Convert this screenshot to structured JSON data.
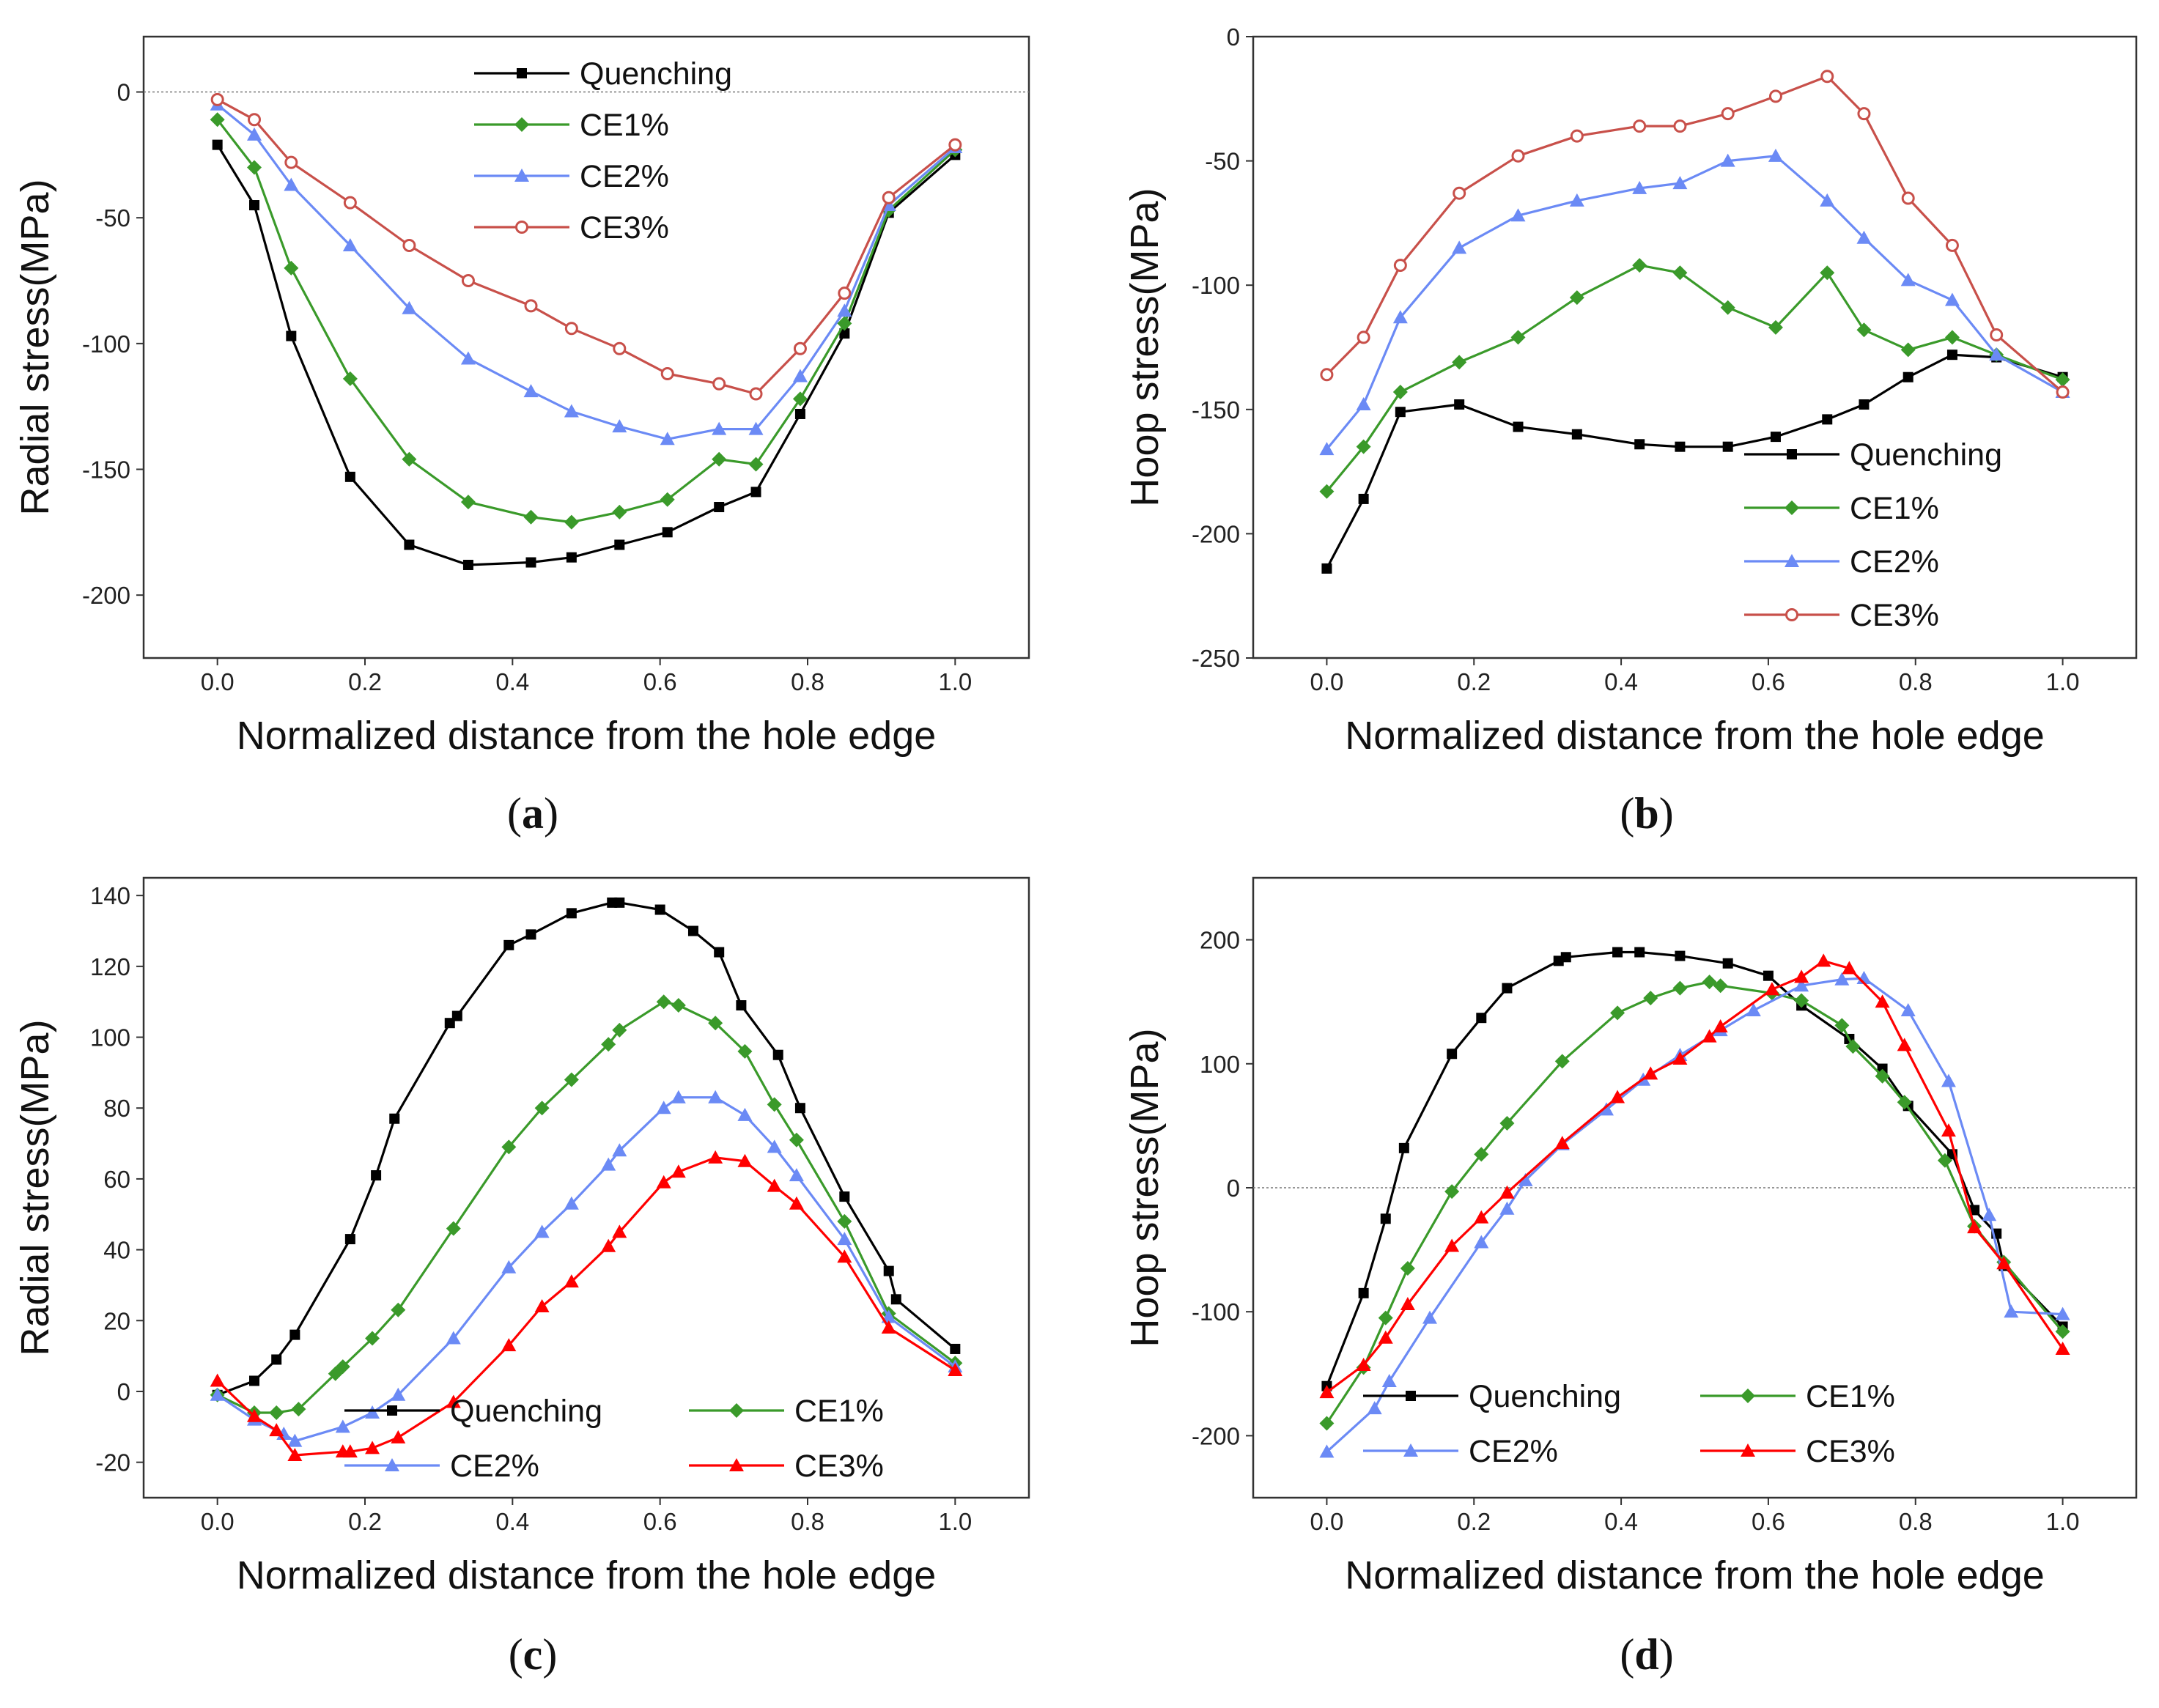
{
  "colors": {
    "Quenching": "#000000",
    "CE1%": "#3a9a2a",
    "CE2%": "#6b8af5",
    "CE3%": "#c8504a",
    "CE3%_red": "#ff0000"
  },
  "chart_data": [
    {
      "id": "a",
      "type": "line",
      "panel_label": "a",
      "xlabel": "Normalized distance from the hole edge",
      "ylabel": "Radial stress(MPa)",
      "xlim": [
        -0.1,
        1.1
      ],
      "ylim": [
        -225,
        22
      ],
      "xticks": [
        0.0,
        0.2,
        0.4,
        0.6,
        0.8,
        1.0
      ],
      "xtick_labels": [
        "0.0",
        "0.2",
        "0.4",
        "0.6",
        "0.8",
        "1.0"
      ],
      "yticks": [
        0,
        -50,
        -100,
        -150,
        -200
      ],
      "ytick_labels": [
        "0",
        "-50",
        "-100",
        "-150",
        "-200"
      ],
      "zero_line": true,
      "legend": {
        "position": "top-center",
        "columns": 1
      },
      "series": [
        {
          "name": "Quenching",
          "marker": "square",
          "color_key": "Quenching",
          "x": [
            0.0,
            0.05,
            0.1,
            0.18,
            0.26,
            0.34,
            0.425,
            0.48,
            0.545,
            0.61,
            0.68,
            0.73,
            0.79,
            0.85,
            0.91,
            1.0
          ],
          "y": [
            -21,
            -45,
            -97,
            -153,
            -180,
            -188,
            -187,
            -185,
            -180,
            -175,
            -165,
            -159,
            -128,
            -96,
            -48,
            -25
          ]
        },
        {
          "name": "CE1%",
          "marker": "diamond",
          "color_key": "CE1%",
          "x": [
            0.0,
            0.05,
            0.1,
            0.18,
            0.26,
            0.34,
            0.425,
            0.48,
            0.545,
            0.61,
            0.68,
            0.73,
            0.79,
            0.85,
            0.91,
            1.0
          ],
          "y": [
            -11,
            -30,
            -70,
            -114,
            -146,
            -163,
            -169,
            -171,
            -167,
            -162,
            -146,
            -148,
            -122,
            -92,
            -47,
            -23
          ]
        },
        {
          "name": "CE2%",
          "marker": "triangle",
          "color_key": "CE2%",
          "x": [
            0.0,
            0.05,
            0.1,
            0.18,
            0.26,
            0.34,
            0.425,
            0.48,
            0.545,
            0.61,
            0.68,
            0.73,
            0.79,
            0.85,
            0.91,
            1.0
          ],
          "y": [
            -5,
            -17,
            -37,
            -61,
            -86,
            -106,
            -119,
            -127,
            -133,
            -138,
            -134,
            -134,
            -113,
            -87,
            -45,
            -22
          ]
        },
        {
          "name": "CE3%",
          "marker": "circle",
          "color_key": "CE3%",
          "x": [
            0.0,
            0.05,
            0.1,
            0.18,
            0.26,
            0.34,
            0.425,
            0.48,
            0.545,
            0.61,
            0.68,
            0.73,
            0.79,
            0.85,
            0.91,
            1.0
          ],
          "y": [
            -3,
            -11,
            -28,
            -44,
            -61,
            -75,
            -85,
            -94,
            -102,
            -112,
            -116,
            -120,
            -102,
            -80,
            -42,
            -21
          ]
        }
      ]
    },
    {
      "id": "b",
      "type": "line",
      "panel_label": "b",
      "xlabel": "Normalized distance from the hole edge",
      "ylabel": "Hoop stress(MPa)",
      "xlim": [
        -0.1,
        1.1
      ],
      "ylim": [
        -250,
        0
      ],
      "xticks": [
        0.0,
        0.2,
        0.4,
        0.6,
        0.8,
        1.0
      ],
      "xtick_labels": [
        "0.0",
        "0.2",
        "0.4",
        "0.6",
        "0.8",
        "1.0"
      ],
      "yticks": [
        0,
        -50,
        -100,
        -150,
        -200,
        -250
      ],
      "ytick_labels": [
        "0",
        "-50",
        "-100",
        "-150",
        "-200",
        "-250"
      ],
      "zero_line": false,
      "legend": {
        "position": "bottom-right",
        "columns": 1
      },
      "series": [
        {
          "name": "Quenching",
          "marker": "square",
          "color_key": "Quenching",
          "x": [
            0.0,
            0.05,
            0.1,
            0.18,
            0.26,
            0.34,
            0.425,
            0.48,
            0.545,
            0.61,
            0.68,
            0.73,
            0.79,
            0.85,
            0.91,
            1.0
          ],
          "y": [
            -214,
            -186,
            -151,
            -148,
            -157,
            -160,
            -164,
            -165,
            -165,
            -161,
            -154,
            -148,
            -137,
            -128,
            -129,
            -137
          ]
        },
        {
          "name": "CE1%",
          "marker": "diamond",
          "color_key": "CE1%",
          "x": [
            0.0,
            0.05,
            0.1,
            0.18,
            0.26,
            0.34,
            0.425,
            0.48,
            0.545,
            0.61,
            0.68,
            0.73,
            0.79,
            0.85,
            0.91,
            1.0
          ],
          "y": [
            -183,
            -165,
            -143,
            -131,
            -121,
            -105,
            -92,
            -95,
            -109,
            -117,
            -95,
            -118,
            -126,
            -121,
            -128,
            -138
          ]
        },
        {
          "name": "CE2%",
          "marker": "triangle",
          "color_key": "CE2%",
          "x": [
            0.0,
            0.05,
            0.1,
            0.18,
            0.26,
            0.34,
            0.425,
            0.48,
            0.545,
            0.61,
            0.68,
            0.73,
            0.79,
            0.85,
            0.91,
            1.0
          ],
          "y": [
            -166,
            -148,
            -113,
            -85,
            -72,
            -66,
            -61,
            -59,
            -50,
            -48,
            -66,
            -81,
            -98,
            -106,
            -128,
            -143
          ]
        },
        {
          "name": "CE3%",
          "marker": "circle",
          "color_key": "CE3%",
          "x": [
            0.0,
            0.05,
            0.1,
            0.18,
            0.26,
            0.34,
            0.425,
            0.48,
            0.545,
            0.61,
            0.68,
            0.73,
            0.79,
            0.85,
            0.91,
            1.0
          ],
          "y": [
            -136,
            -121,
            -92,
            -63,
            -48,
            -40,
            -36,
            -36,
            -31,
            -24,
            -16,
            -31,
            -65,
            -84,
            -120,
            -143
          ]
        }
      ]
    },
    {
      "id": "c",
      "type": "line",
      "panel_label": "c",
      "xlabel": "Normalized distance from the hole edge",
      "ylabel": "Radial stress(MPa)",
      "xlim": [
        -0.1,
        1.1
      ],
      "ylim": [
        -30,
        145
      ],
      "xticks": [
        0.0,
        0.2,
        0.4,
        0.6,
        0.8,
        1.0
      ],
      "xtick_labels": [
        "0.0",
        "0.2",
        "0.4",
        "0.6",
        "0.8",
        "1.0"
      ],
      "yticks": [
        -20,
        0,
        20,
        40,
        60,
        80,
        100,
        120,
        140
      ],
      "ytick_labels": [
        "-20",
        "0",
        "20",
        "40",
        "60",
        "80",
        "100",
        "120",
        "140"
      ],
      "zero_line": false,
      "legend": {
        "position": "bottom-center",
        "columns": 2
      },
      "series": [
        {
          "name": "Quenching",
          "marker": "square",
          "color_key": "Quenching",
          "x": [
            0.0,
            0.05,
            0.08,
            0.105,
            0.18,
            0.215,
            0.24,
            0.315,
            0.325,
            0.395,
            0.425,
            0.48,
            0.535,
            0.545,
            0.6,
            0.645,
            0.68,
            0.71,
            0.76,
            0.79,
            0.85,
            0.91,
            0.92,
            1.0
          ],
          "y": [
            -1,
            3,
            9,
            16,
            43,
            61,
            77,
            104,
            106,
            126,
            129,
            135,
            138,
            138,
            136,
            130,
            124,
            109,
            95,
            80,
            55,
            34,
            26,
            12
          ]
        },
        {
          "name": "CE1%",
          "marker": "diamond",
          "color_key": "CE1%",
          "x": [
            0.0,
            0.05,
            0.08,
            0.11,
            0.16,
            0.17,
            0.21,
            0.245,
            0.32,
            0.395,
            0.44,
            0.48,
            0.53,
            0.545,
            0.605,
            0.625,
            0.675,
            0.715,
            0.755,
            0.785,
            0.85,
            0.91,
            1.0
          ],
          "y": [
            -1,
            -6,
            -6,
            -5,
            5,
            7,
            15,
            23,
            46,
            69,
            80,
            88,
            98,
            102,
            110,
            109,
            104,
            96,
            81,
            71,
            48,
            22,
            8
          ]
        },
        {
          "name": "CE2%",
          "marker": "triangle",
          "color_key": "CE2%",
          "x": [
            0.0,
            0.05,
            0.09,
            0.105,
            0.17,
            0.21,
            0.245,
            0.32,
            0.395,
            0.44,
            0.48,
            0.53,
            0.545,
            0.605,
            0.625,
            0.675,
            0.715,
            0.755,
            0.785,
            0.85,
            0.91,
            1.0
          ],
          "y": [
            -1,
            -8,
            -12,
            -14,
            -10,
            -6,
            -1,
            15,
            35,
            45,
            53,
            64,
            68,
            80,
            83,
            83,
            78,
            69,
            61,
            43,
            21,
            7
          ]
        },
        {
          "name": "CE3%",
          "marker": "triangle",
          "color_key": "CE3%_red",
          "x": [
            0.0,
            0.05,
            0.08,
            0.105,
            0.17,
            0.18,
            0.21,
            0.245,
            0.32,
            0.395,
            0.44,
            0.48,
            0.53,
            0.545,
            0.605,
            0.625,
            0.675,
            0.715,
            0.755,
            0.785,
            0.85,
            0.91,
            1.0
          ],
          "y": [
            3,
            -7,
            -11,
            -18,
            -17,
            -17,
            -16,
            -13,
            -3,
            13,
            24,
            31,
            41,
            45,
            59,
            62,
            66,
            65,
            58,
            53,
            38,
            18,
            6
          ]
        }
      ]
    },
    {
      "id": "d",
      "type": "line",
      "panel_label": "d",
      "xlabel": "Normalized distance from the hole edge",
      "ylabel": "Hoop stress(MPa)",
      "xlim": [
        -0.1,
        1.1
      ],
      "ylim": [
        -250,
        250
      ],
      "xticks": [
        0.0,
        0.2,
        0.4,
        0.6,
        0.8,
        1.0
      ],
      "xtick_labels": [
        "0.0",
        "0.2",
        "0.4",
        "0.6",
        "0.8",
        "1.0"
      ],
      "yticks": [
        -200,
        -100,
        0,
        100,
        200
      ],
      "ytick_labels": [
        "-200",
        "-100",
        "0",
        "100",
        "200"
      ],
      "zero_line": true,
      "legend": {
        "position": "bottom-center",
        "columns": 2
      },
      "series": [
        {
          "name": "Quenching",
          "marker": "square",
          "color_key": "Quenching",
          "x": [
            0.0,
            0.05,
            0.08,
            0.105,
            0.17,
            0.21,
            0.245,
            0.315,
            0.325,
            0.395,
            0.425,
            0.48,
            0.545,
            0.6,
            0.645,
            0.71,
            0.755,
            0.79,
            0.85,
            0.88,
            0.91,
            0.92,
            1.0
          ],
          "y": [
            -160,
            -85,
            -25,
            32,
            108,
            137,
            161,
            183,
            186,
            190,
            190,
            187,
            181,
            171,
            147,
            120,
            96,
            66,
            27,
            -18,
            -37,
            -63,
            -112
          ]
        },
        {
          "name": "CE1%",
          "marker": "diamond",
          "color_key": "CE1%",
          "x": [
            0.0,
            0.05,
            0.08,
            0.11,
            0.17,
            0.21,
            0.245,
            0.32,
            0.395,
            0.44,
            0.48,
            0.52,
            0.535,
            0.605,
            0.645,
            0.7,
            0.715,
            0.755,
            0.785,
            0.84,
            0.88,
            0.92,
            1.0
          ],
          "y": [
            -190,
            -145,
            -105,
            -65,
            -3,
            27,
            52,
            102,
            141,
            153,
            161,
            166,
            163,
            157,
            151,
            131,
            114,
            90,
            69,
            22,
            -31,
            -60,
            -116
          ]
        },
        {
          "name": "CE2%",
          "marker": "triangle",
          "color_key": "CE2%",
          "x": [
            0.0,
            0.065,
            0.085,
            0.14,
            0.21,
            0.245,
            0.27,
            0.32,
            0.38,
            0.43,
            0.48,
            0.535,
            0.58,
            0.645,
            0.7,
            0.73,
            0.79,
            0.845,
            0.9,
            0.93,
            1.0
          ],
          "y": [
            -213,
            -178,
            -156,
            -105,
            -44,
            -17,
            6,
            35,
            63,
            87,
            107,
            127,
            143,
            163,
            168,
            169,
            143,
            86,
            -22,
            -100,
            -102
          ]
        },
        {
          "name": "CE3%",
          "marker": "triangle",
          "color_key": "CE3%_red",
          "x": [
            0.0,
            0.05,
            0.08,
            0.11,
            0.17,
            0.21,
            0.245,
            0.32,
            0.395,
            0.44,
            0.48,
            0.52,
            0.535,
            0.605,
            0.645,
            0.675,
            0.71,
            0.755,
            0.785,
            0.845,
            0.88,
            0.92,
            1.0
          ],
          "y": [
            -165,
            -143,
            -121,
            -94,
            -47,
            -24,
            -4,
            36,
            73,
            92,
            104,
            122,
            130,
            160,
            170,
            183,
            177,
            150,
            115,
            46,
            -32,
            -61,
            -130
          ]
        }
      ]
    }
  ]
}
